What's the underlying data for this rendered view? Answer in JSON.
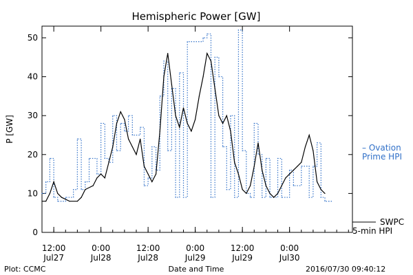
{
  "chart_data": {
    "type": "line",
    "title": "Hemispheric Power [GW]",
    "xlabel": "Date and Time",
    "ylabel": "P [GW]",
    "ylim": [
      0,
      53
    ],
    "yticks": [
      0,
      10,
      20,
      30,
      40,
      50
    ],
    "xlim": [
      "2016-07-27T09:00",
      "2016-07-30T16:00"
    ],
    "xticks": [
      {
        "time": "2016-07-27T12:00",
        "line1": "12:00",
        "line2": "Jul27"
      },
      {
        "time": "2016-07-28T00:00",
        "line1": "0:00",
        "line2": "Jul28"
      },
      {
        "time": "2016-07-28T12:00",
        "line1": "12:00",
        "line2": "Jul28"
      },
      {
        "time": "2016-07-29T00:00",
        "line1": "0:00",
        "line2": "Jul29"
      },
      {
        "time": "2016-07-29T12:00",
        "line1": "12:00",
        "line2": "Jul29"
      },
      {
        "time": "2016-07-30T00:00",
        "line1": "0:00",
        "line2": "Jul30"
      }
    ],
    "series": [
      {
        "name": "Ovation Prime HPI",
        "color": "#3070c8",
        "style": "step-dotted",
        "points": [
          [
            "2016-07-27T09:00",
            10
          ],
          [
            "2016-07-27T10:00",
            13
          ],
          [
            "2016-07-27T11:00",
            19
          ],
          [
            "2016-07-27T12:00",
            9
          ],
          [
            "2016-07-27T13:00",
            8
          ],
          [
            "2016-07-27T15:00",
            9
          ],
          [
            "2016-07-27T17:00",
            11
          ],
          [
            "2016-07-27T18:00",
            24
          ],
          [
            "2016-07-27T19:00",
            11
          ],
          [
            "2016-07-27T20:00",
            13
          ],
          [
            "2016-07-27T21:00",
            19
          ],
          [
            "2016-07-27T23:00",
            15
          ],
          [
            "2016-07-28T00:00",
            28
          ],
          [
            "2016-07-28T01:00",
            19
          ],
          [
            "2016-07-28T02:00",
            18
          ],
          [
            "2016-07-28T03:00",
            30
          ],
          [
            "2016-07-28T04:00",
            21
          ],
          [
            "2016-07-28T05:00",
            28
          ],
          [
            "2016-07-28T06:00",
            26
          ],
          [
            "2016-07-28T07:00",
            30
          ],
          [
            "2016-07-28T08:00",
            25
          ],
          [
            "2016-07-28T10:00",
            27
          ],
          [
            "2016-07-28T11:00",
            12
          ],
          [
            "2016-07-28T12:00",
            14
          ],
          [
            "2016-07-28T13:00",
            22
          ],
          [
            "2016-07-28T14:00",
            16
          ],
          [
            "2016-07-28T15:00",
            35
          ],
          [
            "2016-07-28T16:00",
            44
          ],
          [
            "2016-07-28T17:00",
            21
          ],
          [
            "2016-07-28T18:00",
            37
          ],
          [
            "2016-07-28T19:00",
            9
          ],
          [
            "2016-07-28T20:00",
            41
          ],
          [
            "2016-07-28T21:00",
            9
          ],
          [
            "2016-07-28T22:00",
            49
          ],
          [
            "2016-07-29T02:00",
            50
          ],
          [
            "2016-07-29T03:00",
            51
          ],
          [
            "2016-07-29T04:00",
            9
          ],
          [
            "2016-07-29T05:00",
            45
          ],
          [
            "2016-07-29T06:00",
            40
          ],
          [
            "2016-07-29T07:00",
            22
          ],
          [
            "2016-07-29T08:00",
            11
          ],
          [
            "2016-07-29T09:00",
            30
          ],
          [
            "2016-07-29T10:00",
            9
          ],
          [
            "2016-07-29T11:00",
            52
          ],
          [
            "2016-07-29T12:00",
            21
          ],
          [
            "2016-07-29T13:00",
            10
          ],
          [
            "2016-07-29T14:00",
            9
          ],
          [
            "2016-07-29T15:00",
            28
          ],
          [
            "2016-07-29T16:00",
            20
          ],
          [
            "2016-07-29T17:00",
            9
          ],
          [
            "2016-07-29T18:00",
            19
          ],
          [
            "2016-07-29T19:00",
            9
          ],
          [
            "2016-07-29T21:00",
            19
          ],
          [
            "2016-07-29T22:00",
            9
          ],
          [
            "2016-07-30T00:00",
            16
          ],
          [
            "2016-07-30T01:00",
            12
          ],
          [
            "2016-07-30T03:00",
            17
          ],
          [
            "2016-07-30T05:00",
            9
          ],
          [
            "2016-07-30T06:00",
            17
          ],
          [
            "2016-07-30T07:00",
            23
          ],
          [
            "2016-07-30T08:00",
            9
          ],
          [
            "2016-07-30T09:00",
            8
          ],
          [
            "2016-07-30T10:00",
            8
          ]
        ]
      },
      {
        "name": "SWPC 5-min HPI",
        "color": "#000000",
        "style": "solid",
        "points": [
          [
            "2016-07-27T09:00",
            8
          ],
          [
            "2016-07-27T10:00",
            8
          ],
          [
            "2016-07-27T11:00",
            10
          ],
          [
            "2016-07-27T12:00",
            13
          ],
          [
            "2016-07-27T13:00",
            10
          ],
          [
            "2016-07-27T14:00",
            9
          ],
          [
            "2016-07-27T16:00",
            8
          ],
          [
            "2016-07-27T18:00",
            8
          ],
          [
            "2016-07-27T19:00",
            9
          ],
          [
            "2016-07-27T20:00",
            11
          ],
          [
            "2016-07-27T22:00",
            12
          ],
          [
            "2016-07-27T23:00",
            14
          ],
          [
            "2016-07-28T00:00",
            15
          ],
          [
            "2016-07-28T01:00",
            14
          ],
          [
            "2016-07-28T02:00",
            18
          ],
          [
            "2016-07-28T03:00",
            22
          ],
          [
            "2016-07-28T04:00",
            28
          ],
          [
            "2016-07-28T05:00",
            31
          ],
          [
            "2016-07-28T06:00",
            29
          ],
          [
            "2016-07-28T07:00",
            24
          ],
          [
            "2016-07-28T08:00",
            22
          ],
          [
            "2016-07-28T09:00",
            20
          ],
          [
            "2016-07-28T10:00",
            24
          ],
          [
            "2016-07-28T11:00",
            17
          ],
          [
            "2016-07-28T12:00",
            15
          ],
          [
            "2016-07-28T13:00",
            13
          ],
          [
            "2016-07-28T14:00",
            15
          ],
          [
            "2016-07-28T15:00",
            26
          ],
          [
            "2016-07-28T16:00",
            40
          ],
          [
            "2016-07-28T17:00",
            46
          ],
          [
            "2016-07-28T18:00",
            38
          ],
          [
            "2016-07-28T19:00",
            30
          ],
          [
            "2016-07-28T20:00",
            27
          ],
          [
            "2016-07-28T21:00",
            32
          ],
          [
            "2016-07-28T22:00",
            28
          ],
          [
            "2016-07-28T23:00",
            26
          ],
          [
            "2016-07-29T00:00",
            29
          ],
          [
            "2016-07-29T01:00",
            35
          ],
          [
            "2016-07-29T02:00",
            40
          ],
          [
            "2016-07-29T03:00",
            46
          ],
          [
            "2016-07-29T04:00",
            44
          ],
          [
            "2016-07-29T05:00",
            37
          ],
          [
            "2016-07-29T06:00",
            30
          ],
          [
            "2016-07-29T07:00",
            28
          ],
          [
            "2016-07-29T08:00",
            30
          ],
          [
            "2016-07-29T09:00",
            26
          ],
          [
            "2016-07-29T10:00",
            18
          ],
          [
            "2016-07-29T11:00",
            15
          ],
          [
            "2016-07-29T12:00",
            11
          ],
          [
            "2016-07-29T13:00",
            10
          ],
          [
            "2016-07-29T14:00",
            12
          ],
          [
            "2016-07-29T15:00",
            17
          ],
          [
            "2016-07-29T16:00",
            23
          ],
          [
            "2016-07-29T17:00",
            16
          ],
          [
            "2016-07-29T18:00",
            12
          ],
          [
            "2016-07-29T19:00",
            10
          ],
          [
            "2016-07-29T20:00",
            9
          ],
          [
            "2016-07-29T21:00",
            10
          ],
          [
            "2016-07-29T22:00",
            12
          ],
          [
            "2016-07-29T23:00",
            14
          ],
          [
            "2016-07-30T00:00",
            15
          ],
          [
            "2016-07-30T01:00",
            16
          ],
          [
            "2016-07-30T02:00",
            17
          ],
          [
            "2016-07-30T03:00",
            18
          ],
          [
            "2016-07-30T04:00",
            22
          ],
          [
            "2016-07-30T05:00",
            25
          ],
          [
            "2016-07-30T06:00",
            21
          ],
          [
            "2016-07-30T07:00",
            13
          ],
          [
            "2016-07-30T08:00",
            11
          ],
          [
            "2016-07-30T09:00",
            10
          ]
        ]
      }
    ],
    "legend": {
      "placement": "right",
      "ovation_line1": "– Ovation",
      "ovation_line2": "Prime HPI",
      "swpc_line1": "SWPC",
      "swpc_line2": "5-min HPI"
    }
  },
  "footer": {
    "plot_credit": "Plot: CCMC",
    "timestamp": "2016/07/30 09:40:12"
  }
}
